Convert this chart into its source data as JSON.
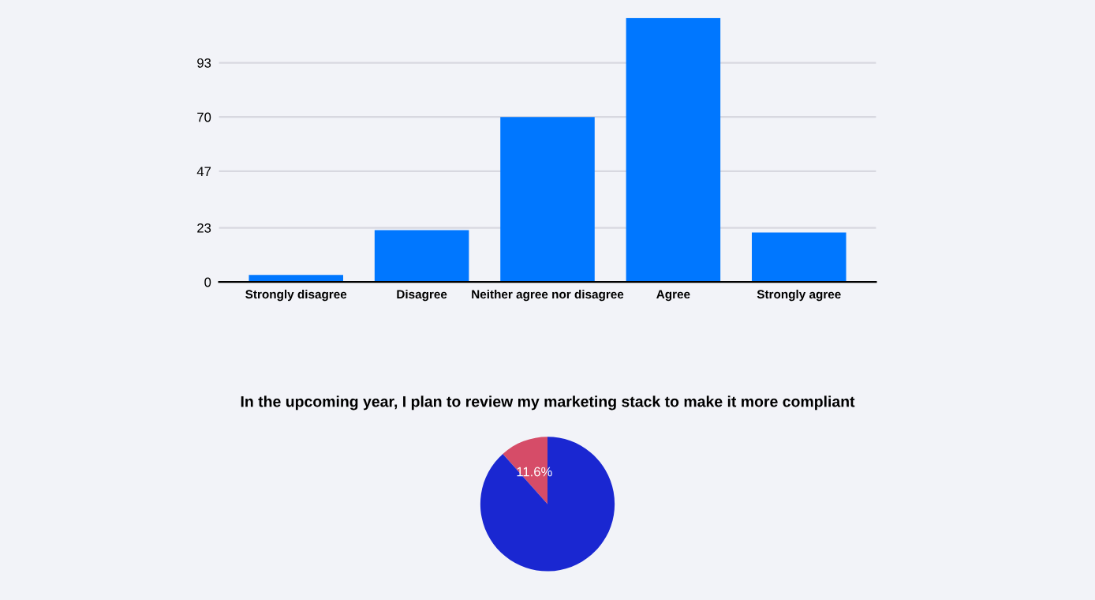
{
  "chart_data": [
    {
      "type": "bar",
      "categories": [
        "Strongly disagree",
        "Disagree",
        "Neither agree nor disagree",
        "Agree",
        "Strongly agree"
      ],
      "values": [
        3,
        22,
        70,
        112,
        21
      ],
      "color": "#0077ff",
      "ylim": [
        0,
        112
      ],
      "yticks": [
        0,
        23,
        47,
        70,
        93
      ],
      "grid": "y"
    },
    {
      "type": "pie",
      "title": "In the upcoming year, I plan to review my marketing stack to make it more compliant",
      "categories": [
        null,
        null
      ],
      "values": [
        11.6,
        88.4
      ],
      "colors": [
        "#d64c68",
        "#1a27d1"
      ],
      "value_labels": [
        "11.6%",
        null
      ]
    }
  ]
}
